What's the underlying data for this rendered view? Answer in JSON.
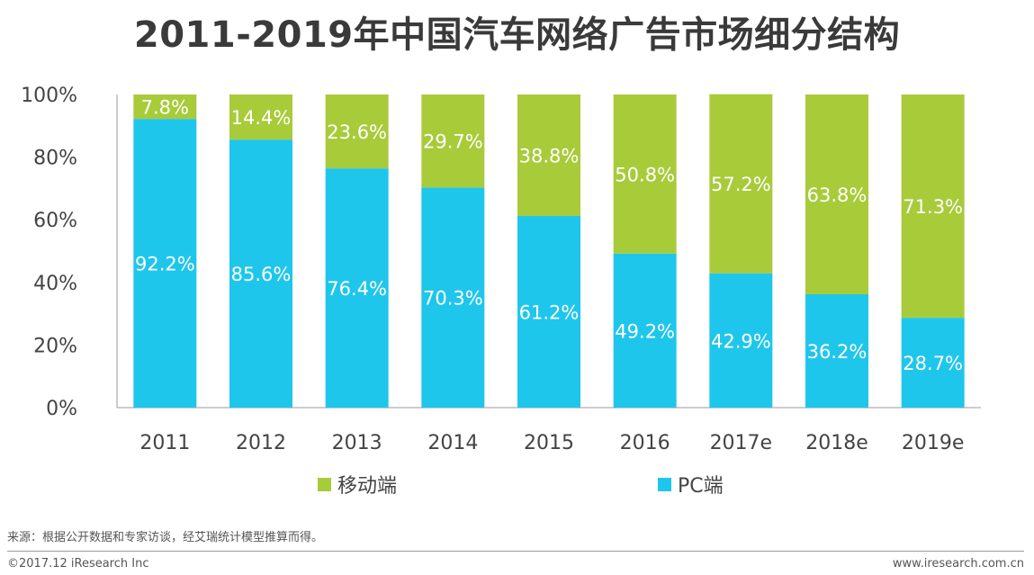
{
  "chart_data": {
    "type": "bar",
    "stacked": true,
    "percent": true,
    "title": "2011-2019年中国汽车网络广告市场细分结构",
    "categories": [
      "2011",
      "2012",
      "2013",
      "2014",
      "2015",
      "2016",
      "2017e",
      "2018e",
      "2019e"
    ],
    "series": [
      {
        "name": "PC端",
        "color": "#1fc6ec",
        "values": [
          92.2,
          85.6,
          76.4,
          70.3,
          61.2,
          49.2,
          42.9,
          36.2,
          28.7
        ],
        "labels": [
          "92.2%",
          "85.6%",
          "76.4%",
          "70.3%",
          "61.2%",
          "49.2%",
          "42.9%",
          "36.2%",
          "28.7%"
        ]
      },
      {
        "name": "移动端",
        "color": "#a8cb3a",
        "values": [
          7.8,
          14.4,
          23.6,
          29.7,
          38.8,
          50.8,
          57.2,
          63.8,
          71.3
        ],
        "labels": [
          "7.8%",
          "14.4%",
          "23.6%",
          "29.7%",
          "38.8%",
          "50.8%",
          "57.2%",
          "63.8%",
          "71.3%"
        ]
      }
    ],
    "ylim": [
      0,
      100
    ],
    "yticks": [
      "0%",
      "20%",
      "40%",
      "60%",
      "80%",
      "100%"
    ],
    "xlabel": "",
    "ylabel": "",
    "legend": [
      "移动端",
      "PC端"
    ],
    "legend_position": "bottom",
    "grid": false
  },
  "footer": {
    "source": "来源：根据公开数据和专家访谈，经艾瑞统计模型推算而得。",
    "copyright": "©2017.12 iResearch Inc",
    "website": "www.iresearch.com.cn"
  }
}
